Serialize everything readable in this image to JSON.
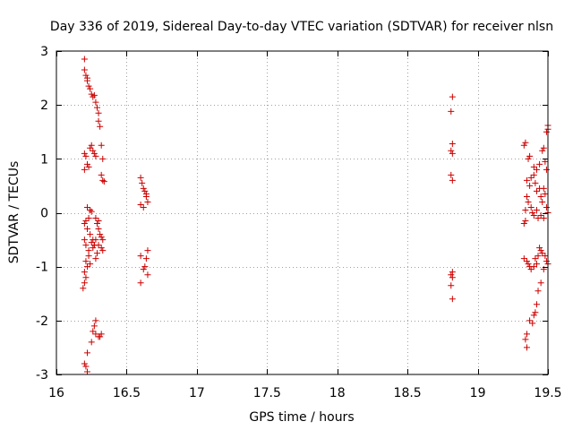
{
  "chart_data": {
    "type": "scatter",
    "title": "Day 336 of 2019, Sidereal Day-to-day VTEC variation (SDTVAR) for receiver nlsn",
    "xlabel": "GPS time / hours",
    "ylabel": "SDTVAR / TECUs",
    "xlim": [
      16,
      19.5
    ],
    "ylim": [
      -3,
      3
    ],
    "x_ticks": [
      16,
      16.5,
      17,
      17.5,
      18,
      18.5,
      19,
      19.5
    ],
    "x_tick_labels": [
      "16",
      "16.5",
      "17",
      "17.5",
      "18",
      "18.5",
      "19",
      "19.5"
    ],
    "y_ticks": [
      -3,
      -2,
      -1,
      0,
      1,
      2,
      3
    ],
    "y_tick_labels": [
      "-3",
      "-2",
      "-1",
      "0",
      "1",
      "2",
      "3"
    ],
    "grid": true,
    "marker": "plus",
    "color": "#cc0000",
    "series": [
      {
        "name": "SDTVAR",
        "points": [
          [
            16.2,
            2.85
          ],
          [
            16.2,
            2.65
          ],
          [
            16.21,
            2.55
          ],
          [
            16.22,
            2.5
          ],
          [
            16.22,
            2.45
          ],
          [
            16.23,
            2.35
          ],
          [
            16.24,
            2.3
          ],
          [
            16.25,
            2.2
          ],
          [
            16.26,
            2.15
          ],
          [
            16.27,
            2.18
          ],
          [
            16.28,
            2.05
          ],
          [
            16.29,
            1.95
          ],
          [
            16.3,
            1.85
          ],
          [
            16.3,
            1.7
          ],
          [
            16.31,
            1.6
          ],
          [
            16.32,
            1.25
          ],
          [
            16.33,
            1.0
          ],
          [
            16.32,
            0.7
          ],
          [
            16.33,
            0.6
          ],
          [
            16.34,
            0.58
          ],
          [
            16.2,
            1.1
          ],
          [
            16.21,
            1.05
          ],
          [
            16.22,
            0.9
          ],
          [
            16.2,
            0.8
          ],
          [
            16.23,
            0.85
          ],
          [
            16.24,
            1.2
          ],
          [
            16.25,
            1.25
          ],
          [
            16.26,
            1.15
          ],
          [
            16.27,
            1.1
          ],
          [
            16.28,
            1.05
          ],
          [
            16.22,
            0.1
          ],
          [
            16.24,
            0.05
          ],
          [
            16.25,
            0.02
          ],
          [
            16.23,
            -0.1
          ],
          [
            16.21,
            -0.15
          ],
          [
            16.2,
            -0.2
          ],
          [
            16.22,
            -0.3
          ],
          [
            16.24,
            -0.4
          ],
          [
            16.2,
            -0.5
          ],
          [
            16.21,
            -0.6
          ],
          [
            16.23,
            -0.7
          ],
          [
            16.25,
            -0.55
          ],
          [
            16.26,
            -0.5
          ],
          [
            16.27,
            -0.6
          ],
          [
            16.28,
            -0.5
          ],
          [
            16.28,
            -0.1
          ],
          [
            16.29,
            -0.2
          ],
          [
            16.3,
            -0.3
          ],
          [
            16.31,
            -0.4
          ],
          [
            16.32,
            -0.45
          ],
          [
            16.33,
            -0.5
          ],
          [
            16.32,
            -0.65
          ],
          [
            16.3,
            -0.6
          ],
          [
            16.29,
            -0.75
          ],
          [
            16.28,
            -0.85
          ],
          [
            16.27,
            -0.6
          ],
          [
            16.26,
            -0.65
          ],
          [
            16.33,
            -0.7
          ],
          [
            16.3,
            -0.15
          ],
          [
            16.21,
            -0.9
          ],
          [
            16.22,
            -1.0
          ],
          [
            16.2,
            -1.1
          ],
          [
            16.21,
            -1.2
          ],
          [
            16.2,
            -1.3
          ],
          [
            16.19,
            -1.4
          ],
          [
            16.23,
            -0.8
          ],
          [
            16.24,
            -0.95
          ],
          [
            16.28,
            -2.0
          ],
          [
            16.27,
            -2.1
          ],
          [
            16.26,
            -2.2
          ],
          [
            16.28,
            -2.25
          ],
          [
            16.3,
            -2.3
          ],
          [
            16.31,
            -2.3
          ],
          [
            16.32,
            -2.25
          ],
          [
            16.25,
            -2.4
          ],
          [
            16.22,
            -2.6
          ],
          [
            16.2,
            -2.8
          ],
          [
            16.21,
            -2.85
          ],
          [
            16.22,
            -2.95
          ],
          [
            16.6,
            0.65
          ],
          [
            16.61,
            0.55
          ],
          [
            16.62,
            0.45
          ],
          [
            16.63,
            0.4
          ],
          [
            16.64,
            0.3
          ],
          [
            16.65,
            0.2
          ],
          [
            16.6,
            0.15
          ],
          [
            16.62,
            0.1
          ],
          [
            16.64,
            0.35
          ],
          [
            16.6,
            -0.8
          ],
          [
            16.62,
            -1.05
          ],
          [
            16.63,
            -1.0
          ],
          [
            16.64,
            -0.85
          ],
          [
            16.65,
            -0.7
          ],
          [
            16.65,
            -1.15
          ],
          [
            16.6,
            -1.3
          ],
          [
            18.82,
            2.15
          ],
          [
            18.81,
            1.88
          ],
          [
            18.82,
            1.28
          ],
          [
            18.81,
            1.15
          ],
          [
            18.82,
            1.1
          ],
          [
            18.81,
            0.7
          ],
          [
            18.82,
            0.6
          ],
          [
            18.82,
            -1.1
          ],
          [
            18.81,
            -1.15
          ],
          [
            18.82,
            -1.2
          ],
          [
            18.81,
            -1.35
          ],
          [
            18.82,
            -1.6
          ],
          [
            19.33,
            1.25
          ],
          [
            19.34,
            1.3
          ],
          [
            19.36,
            1.0
          ],
          [
            19.37,
            1.05
          ],
          [
            19.4,
            0.85
          ],
          [
            19.42,
            0.8
          ],
          [
            19.44,
            0.9
          ],
          [
            19.46,
            1.15
          ],
          [
            19.47,
            1.2
          ],
          [
            19.48,
            0.95
          ],
          [
            19.49,
            1.5
          ],
          [
            19.5,
            1.55
          ],
          [
            19.5,
            1.62
          ],
          [
            19.49,
            0.8
          ],
          [
            19.35,
            0.6
          ],
          [
            19.37,
            0.5
          ],
          [
            19.38,
            0.65
          ],
          [
            19.4,
            0.7
          ],
          [
            19.41,
            0.55
          ],
          [
            19.42,
            0.4
          ],
          [
            19.44,
            0.45
          ],
          [
            19.45,
            0.3
          ],
          [
            19.46,
            0.2
          ],
          [
            19.47,
            0.45
          ],
          [
            19.48,
            0.35
          ],
          [
            19.49,
            0.1
          ],
          [
            19.5,
            0.0
          ],
          [
            19.35,
            0.3
          ],
          [
            19.36,
            0.2
          ],
          [
            19.34,
            0.05
          ],
          [
            19.38,
            0.1
          ],
          [
            19.39,
            0.0
          ],
          [
            19.4,
            -0.05
          ],
          [
            19.42,
            0.05
          ],
          [
            19.43,
            -0.1
          ],
          [
            19.45,
            -0.05
          ],
          [
            19.47,
            -0.1
          ],
          [
            19.33,
            -0.2
          ],
          [
            19.34,
            -0.15
          ],
          [
            19.44,
            -0.65
          ],
          [
            19.45,
            -0.7
          ],
          [
            19.46,
            -0.75
          ],
          [
            19.48,
            -0.8
          ],
          [
            19.49,
            -0.9
          ],
          [
            19.5,
            -0.95
          ],
          [
            19.33,
            -0.85
          ],
          [
            19.35,
            -0.9
          ],
          [
            19.36,
            -0.95
          ],
          [
            19.37,
            -1.0
          ],
          [
            19.38,
            -1.05
          ],
          [
            19.4,
            -1.0
          ],
          [
            19.41,
            -0.85
          ],
          [
            19.42,
            -0.95
          ],
          [
            19.43,
            -0.8
          ],
          [
            19.47,
            -1.05
          ],
          [
            19.45,
            -1.3
          ],
          [
            19.43,
            -1.45
          ],
          [
            19.42,
            -1.7
          ],
          [
            19.41,
            -1.85
          ],
          [
            19.4,
            -1.9
          ],
          [
            19.39,
            -2.05
          ],
          [
            19.37,
            -2.0
          ],
          [
            19.35,
            -2.25
          ],
          [
            19.34,
            -2.35
          ],
          [
            19.35,
            -2.5
          ]
        ]
      }
    ]
  }
}
